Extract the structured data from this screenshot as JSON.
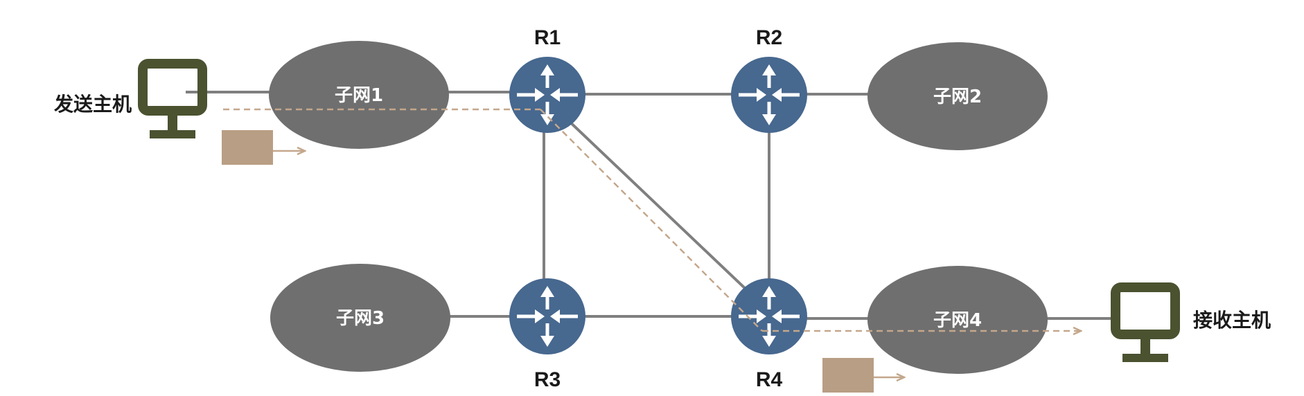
{
  "colors": {
    "link": "#7f7f7f",
    "subnet": "#6f6f6f",
    "router": "#47688f",
    "host": "#4a5230",
    "packet": "#b89e84",
    "path": "#c4a78c"
  },
  "routers": [
    {
      "id": "R1",
      "label": "R1"
    },
    {
      "id": "R2",
      "label": "R2"
    },
    {
      "id": "R3",
      "label": "R3"
    },
    {
      "id": "R4",
      "label": "R4"
    }
  ],
  "subnets": [
    {
      "id": "s1",
      "label": "子网1"
    },
    {
      "id": "s2",
      "label": "子网2"
    },
    {
      "id": "s3",
      "label": "子网3"
    },
    {
      "id": "s4",
      "label": "子网4"
    }
  ],
  "hosts": {
    "sender": {
      "label": "发送主机",
      "icon": "computer-icon"
    },
    "receiver": {
      "label": "接收主机",
      "icon": "computer-icon"
    }
  },
  "packet_icon": "packet-icon",
  "router_icon": "router-icon"
}
